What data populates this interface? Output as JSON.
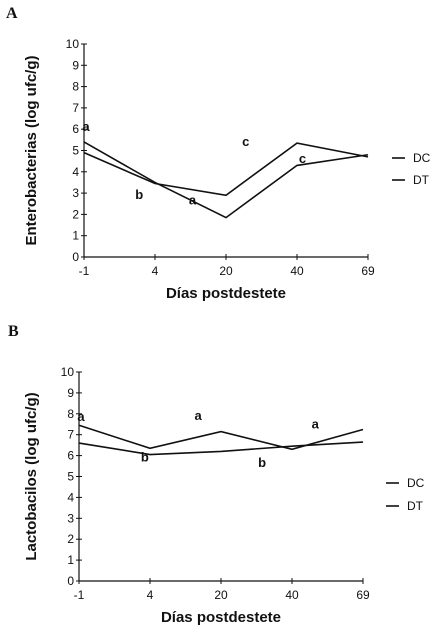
{
  "chart_data": [
    {
      "panel": "A",
      "type": "line",
      "ylabel": "Enterobacterias (log ufc/g)",
      "xlabel": "Días postdestete",
      "categories": [
        "-1",
        "4",
        "20",
        "40",
        "69"
      ],
      "ylim": [
        0,
        10
      ],
      "yticks": [
        "0",
        "1",
        "2",
        "3",
        "4",
        "5",
        "6",
        "7",
        "8",
        "9",
        "10"
      ],
      "series": [
        {
          "name": "DC",
          "values": [
            5.4,
            3.5,
            1.85,
            4.3,
            4.8
          ]
        },
        {
          "name": "DT",
          "values": [
            4.9,
            3.45,
            2.9,
            5.35,
            4.7
          ]
        }
      ],
      "annotations": [
        {
          "text": "a",
          "x": "-1",
          "y": 6.1
        },
        {
          "text": "b",
          "x": 0.75,
          "y": 2.9
        },
        {
          "text": "a",
          "x": 1.5,
          "y": 2.65
        },
        {
          "text": "c",
          "x": 2.25,
          "y": 5.4
        },
        {
          "text": "c",
          "x": 3.05,
          "y": 4.6
        }
      ],
      "legend_position": "right"
    },
    {
      "panel": "B",
      "type": "line",
      "ylabel": "Lactobacilos (log ufc/g)",
      "xlabel": "Días postdestete",
      "categories": [
        "-1",
        "4",
        "20",
        "40",
        "69"
      ],
      "ylim": [
        0,
        10
      ],
      "yticks": [
        "0",
        "1",
        "2",
        "3",
        "4",
        "5",
        "6",
        "7",
        "8",
        "9",
        "10"
      ],
      "series": [
        {
          "name": "DC",
          "values": [
            7.45,
            6.35,
            7.15,
            6.3,
            7.25
          ]
        },
        {
          "name": "DT",
          "values": [
            6.6,
            6.05,
            6.2,
            6.45,
            6.65
          ]
        }
      ],
      "annotations": [
        {
          "text": "a",
          "x": "-1",
          "y": 7.85
        },
        {
          "text": "b",
          "x": 0.9,
          "y": 5.9
        },
        {
          "text": "a",
          "x": 1.65,
          "y": 7.9
        },
        {
          "text": "b",
          "x": 2.55,
          "y": 5.65
        },
        {
          "text": "a",
          "x": 3.3,
          "y": 7.5
        }
      ],
      "legend_position": "right"
    }
  ]
}
